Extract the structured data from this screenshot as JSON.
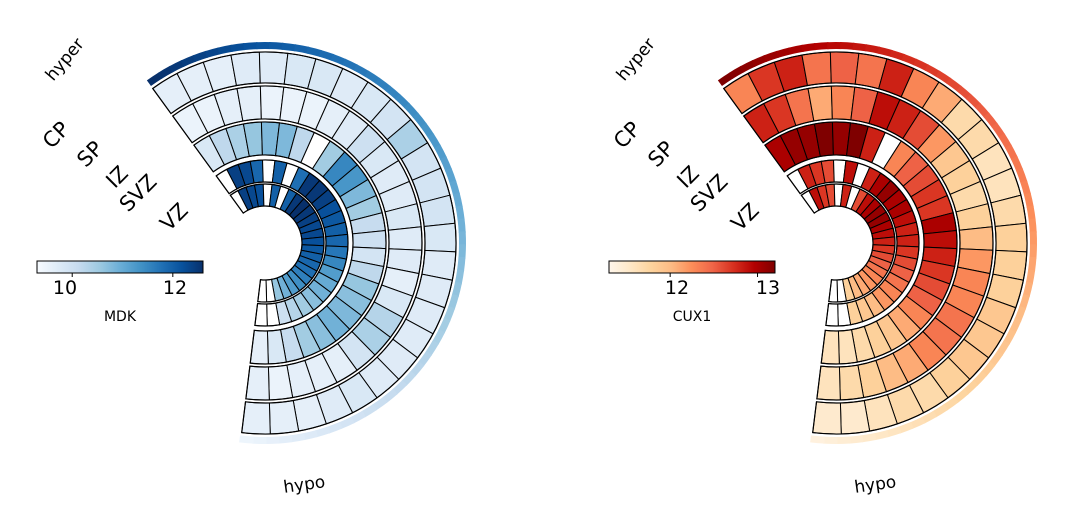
{
  "chart_data": [
    {
      "type": "heatmap",
      "subtype": "radial heatmap",
      "colormap": "Blues",
      "gene_label": "MDK",
      "colorbar": {
        "ticks": [
          "10",
          "12"
        ],
        "min": 9.3,
        "max": 12.6
      },
      "rings": [
        "CP",
        "SP",
        "IZ",
        "SVZ",
        "VZ"
      ],
      "direction_labels": {
        "start": "hyper",
        "end": "hypo"
      },
      "values": {
        "CP": [
          9.6,
          9.6,
          9.6,
          9.7,
          9.7,
          9.8,
          9.8,
          9.7,
          9.8,
          9.9,
          10.4,
          9.9,
          9.9,
          9.9,
          9.8,
          9.7,
          9.7,
          9.7,
          9.7,
          9.7,
          9.7,
          9.8,
          9.7,
          9.6,
          9.6,
          9.6
        ],
        "SP": [
          9.5,
          9.5,
          9.6,
          9.6,
          9.5,
          9.5,
          9.5,
          9.6,
          9.7,
          10.0,
          9.8,
          9.7,
          9.7,
          9.8,
          9.7,
          9.7,
          9.6,
          9.8,
          10.3,
          10.4,
          9.9,
          9.6,
          9.6,
          9.6,
          9.5,
          9.6
        ],
        "IZ": [
          9.8,
          10.2,
          10.4,
          10.6,
          10.8,
          10.8,
          10.2,
          9.3,
          10.5,
          11.5,
          11.3,
          10.8,
          10.5,
          10.1,
          10.0,
          9.9,
          10.2,
          10.6,
          10.7,
          10.8,
          10.9,
          10.7,
          10.5,
          10.1,
          9.8,
          9.6
        ],
        "SVZ": [
          9.3,
          12.4,
          12.3,
          11.9,
          9.3,
          12.0,
          9.3,
          11.8,
          12.5,
          12.5,
          12.4,
          12.2,
          12.1,
          12.0,
          11.9,
          11.7,
          11.5,
          11.2,
          11.0,
          10.9,
          10.7,
          10.5,
          10.3,
          10.0,
          9.3,
          9.3
        ],
        "VZ": [
          9.3,
          12.4,
          12.3,
          12.2,
          9.3,
          12.0,
          9.3,
          12.0,
          12.5,
          12.6,
          12.5,
          12.4,
          12.3,
          12.3,
          12.2,
          12.1,
          12.0,
          11.9,
          11.8,
          11.6,
          11.4,
          11.2,
          10.9,
          10.6,
          9.3,
          9.3
        ]
      }
    },
    {
      "type": "heatmap",
      "subtype": "radial heatmap",
      "colormap": "OrRd",
      "gene_label": "CUX1",
      "colorbar": {
        "ticks": [
          "12",
          "13"
        ],
        "min": 11.3,
        "max": 13.2
      },
      "rings": [
        "CP",
        "SP",
        "IZ",
        "SVZ",
        "VZ"
      ],
      "direction_labels": {
        "start": "hyper",
        "end": "hypo"
      },
      "values": {
        "CP": [
          12.3,
          12.7,
          12.8,
          12.4,
          12.5,
          12.4,
          12.8,
          12.3,
          12.1,
          11.7,
          11.7,
          11.6,
          11.6,
          11.7,
          11.8,
          11.8,
          11.8,
          11.9,
          11.9,
          11.9,
          11.8,
          11.7,
          11.7,
          11.6,
          11.5,
          11.5
        ],
        "SP": [
          12.8,
          12.7,
          12.4,
          12.1,
          12.3,
          12.5,
          12.9,
          12.8,
          12.6,
          12.2,
          11.9,
          11.8,
          11.7,
          11.8,
          12.0,
          12.2,
          12.3,
          12.3,
          12.4,
          12.4,
          12.3,
          12.1,
          12.0,
          11.8,
          11.7,
          11.6
        ],
        "IZ": [
          13.0,
          13.1,
          13.1,
          13.2,
          13.1,
          13.2,
          12.8,
          11.3,
          12.3,
          12.5,
          12.6,
          12.7,
          12.7,
          13.0,
          12.9,
          12.8,
          12.7,
          12.6,
          12.5,
          12.3,
          12.1,
          11.9,
          11.8,
          11.7,
          11.6,
          11.6
        ],
        "SVZ": [
          11.3,
          12.8,
          12.7,
          12.6,
          11.3,
          12.9,
          11.3,
          12.8,
          13.0,
          13.1,
          13.0,
          13.0,
          12.9,
          12.8,
          12.8,
          12.7,
          12.6,
          12.5,
          12.4,
          12.3,
          12.2,
          12.0,
          11.9,
          11.8,
          11.3,
          11.3
        ],
        "VZ": [
          11.3,
          12.9,
          12.7,
          12.6,
          11.3,
          12.8,
          11.3,
          12.6,
          12.9,
          13.0,
          13.1,
          13.1,
          13.0,
          12.9,
          12.8,
          12.7,
          12.6,
          12.5,
          12.4,
          12.3,
          12.2,
          12.1,
          12.0,
          11.8,
          11.3,
          11.3
        ]
      }
    }
  ],
  "palettes": {
    "Blues": [
      "#f7fbff",
      "#deebf7",
      "#c6dbef",
      "#9ecae1",
      "#6baed6",
      "#4292c6",
      "#2171b5",
      "#08519c",
      "#08306b"
    ],
    "OrRd": [
      "#fff7ec",
      "#fee8c8",
      "#fdd49e",
      "#fdbb84",
      "#fc8d59",
      "#ef6548",
      "#d7301f",
      "#b30000",
      "#7f0000"
    ]
  }
}
